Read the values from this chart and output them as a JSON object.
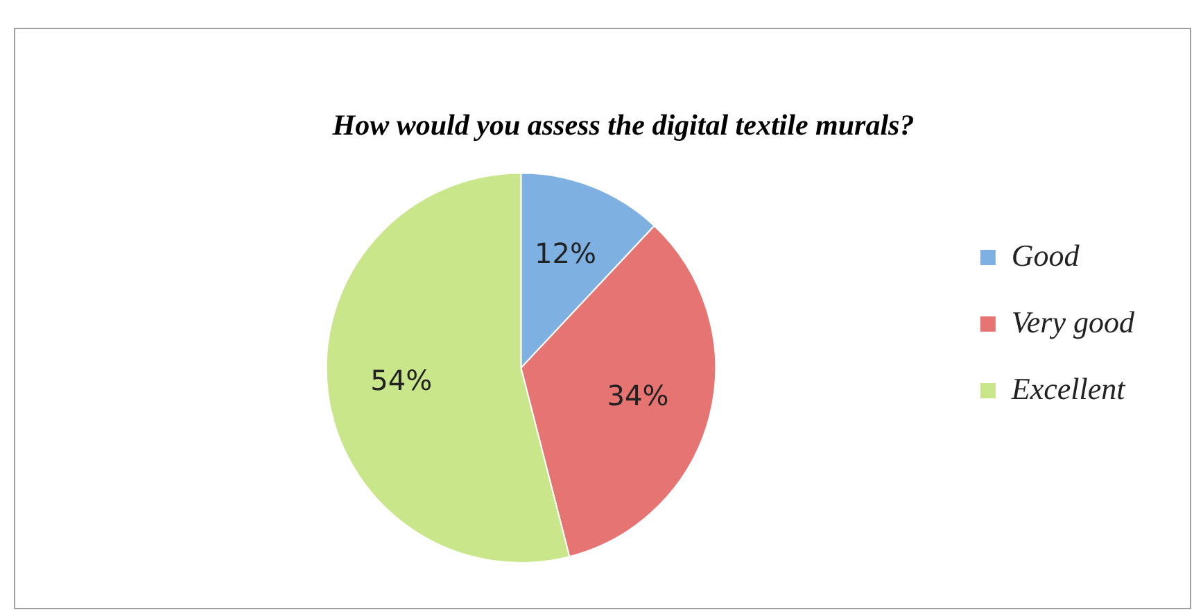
{
  "chart_data": {
    "type": "pie",
    "title": "How would you assess the digital textile murals?",
    "categories": [
      "Good",
      "Very good",
      "Excellent"
    ],
    "values": [
      12,
      34,
      54
    ],
    "colors": [
      "#7fb0e2",
      "#e57473",
      "#c9e68a"
    ],
    "value_labels": [
      "12%",
      "34%",
      "54%"
    ],
    "legend": "right"
  }
}
